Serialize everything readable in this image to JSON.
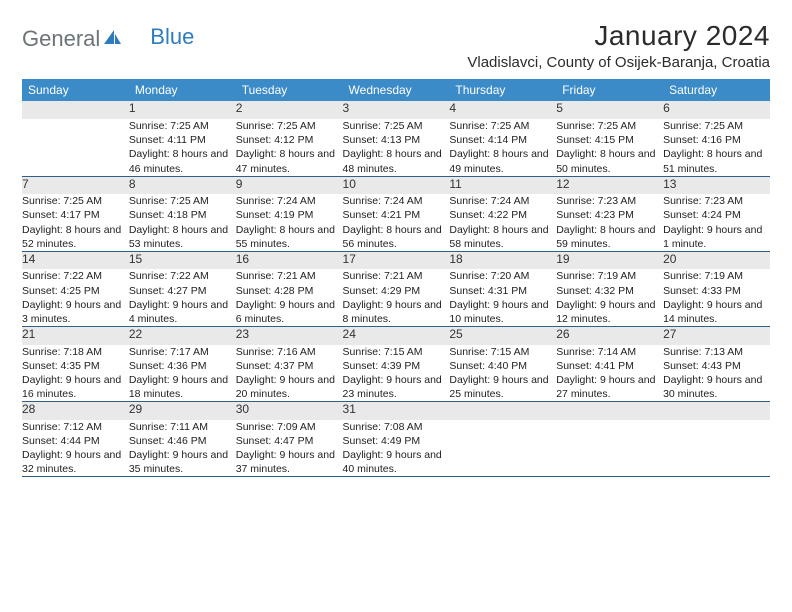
{
  "brand": {
    "part1": "General",
    "part2": "Blue"
  },
  "title": "January 2024",
  "location": "Vladislavci, County of Osijek-Baranja, Croatia",
  "colors": {
    "header_bg": "#3b8bc9",
    "header_text": "#ffffff",
    "daynum_bg": "#e9e9e9",
    "rule": "#2e5f8a",
    "logo_gray": "#6b7577",
    "logo_blue": "#2e7cc0"
  },
  "weekdays": [
    "Sunday",
    "Monday",
    "Tuesday",
    "Wednesday",
    "Thursday",
    "Friday",
    "Saturday"
  ],
  "weeks": [
    [
      null,
      {
        "n": "1",
        "sr": "7:25 AM",
        "ss": "4:11 PM",
        "dl": "8 hours and 46 minutes."
      },
      {
        "n": "2",
        "sr": "7:25 AM",
        "ss": "4:12 PM",
        "dl": "8 hours and 47 minutes."
      },
      {
        "n": "3",
        "sr": "7:25 AM",
        "ss": "4:13 PM",
        "dl": "8 hours and 48 minutes."
      },
      {
        "n": "4",
        "sr": "7:25 AM",
        "ss": "4:14 PM",
        "dl": "8 hours and 49 minutes."
      },
      {
        "n": "5",
        "sr": "7:25 AM",
        "ss": "4:15 PM",
        "dl": "8 hours and 50 minutes."
      },
      {
        "n": "6",
        "sr": "7:25 AM",
        "ss": "4:16 PM",
        "dl": "8 hours and 51 minutes."
      }
    ],
    [
      {
        "n": "7",
        "sr": "7:25 AM",
        "ss": "4:17 PM",
        "dl": "8 hours and 52 minutes."
      },
      {
        "n": "8",
        "sr": "7:25 AM",
        "ss": "4:18 PM",
        "dl": "8 hours and 53 minutes."
      },
      {
        "n": "9",
        "sr": "7:24 AM",
        "ss": "4:19 PM",
        "dl": "8 hours and 55 minutes."
      },
      {
        "n": "10",
        "sr": "7:24 AM",
        "ss": "4:21 PM",
        "dl": "8 hours and 56 minutes."
      },
      {
        "n": "11",
        "sr": "7:24 AM",
        "ss": "4:22 PM",
        "dl": "8 hours and 58 minutes."
      },
      {
        "n": "12",
        "sr": "7:23 AM",
        "ss": "4:23 PM",
        "dl": "8 hours and 59 minutes."
      },
      {
        "n": "13",
        "sr": "7:23 AM",
        "ss": "4:24 PM",
        "dl": "9 hours and 1 minute."
      }
    ],
    [
      {
        "n": "14",
        "sr": "7:22 AM",
        "ss": "4:25 PM",
        "dl": "9 hours and 3 minutes."
      },
      {
        "n": "15",
        "sr": "7:22 AM",
        "ss": "4:27 PM",
        "dl": "9 hours and 4 minutes."
      },
      {
        "n": "16",
        "sr": "7:21 AM",
        "ss": "4:28 PM",
        "dl": "9 hours and 6 minutes."
      },
      {
        "n": "17",
        "sr": "7:21 AM",
        "ss": "4:29 PM",
        "dl": "9 hours and 8 minutes."
      },
      {
        "n": "18",
        "sr": "7:20 AM",
        "ss": "4:31 PM",
        "dl": "9 hours and 10 minutes."
      },
      {
        "n": "19",
        "sr": "7:19 AM",
        "ss": "4:32 PM",
        "dl": "9 hours and 12 minutes."
      },
      {
        "n": "20",
        "sr": "7:19 AM",
        "ss": "4:33 PM",
        "dl": "9 hours and 14 minutes."
      }
    ],
    [
      {
        "n": "21",
        "sr": "7:18 AM",
        "ss": "4:35 PM",
        "dl": "9 hours and 16 minutes."
      },
      {
        "n": "22",
        "sr": "7:17 AM",
        "ss": "4:36 PM",
        "dl": "9 hours and 18 minutes."
      },
      {
        "n": "23",
        "sr": "7:16 AM",
        "ss": "4:37 PM",
        "dl": "9 hours and 20 minutes."
      },
      {
        "n": "24",
        "sr": "7:15 AM",
        "ss": "4:39 PM",
        "dl": "9 hours and 23 minutes."
      },
      {
        "n": "25",
        "sr": "7:15 AM",
        "ss": "4:40 PM",
        "dl": "9 hours and 25 minutes."
      },
      {
        "n": "26",
        "sr": "7:14 AM",
        "ss": "4:41 PM",
        "dl": "9 hours and 27 minutes."
      },
      {
        "n": "27",
        "sr": "7:13 AM",
        "ss": "4:43 PM",
        "dl": "9 hours and 30 minutes."
      }
    ],
    [
      {
        "n": "28",
        "sr": "7:12 AM",
        "ss": "4:44 PM",
        "dl": "9 hours and 32 minutes."
      },
      {
        "n": "29",
        "sr": "7:11 AM",
        "ss": "4:46 PM",
        "dl": "9 hours and 35 minutes."
      },
      {
        "n": "30",
        "sr": "7:09 AM",
        "ss": "4:47 PM",
        "dl": "9 hours and 37 minutes."
      },
      {
        "n": "31",
        "sr": "7:08 AM",
        "ss": "4:49 PM",
        "dl": "9 hours and 40 minutes."
      },
      null,
      null,
      null
    ]
  ],
  "labels": {
    "sunrise": "Sunrise:",
    "sunset": "Sunset:",
    "daylight": "Daylight:"
  }
}
